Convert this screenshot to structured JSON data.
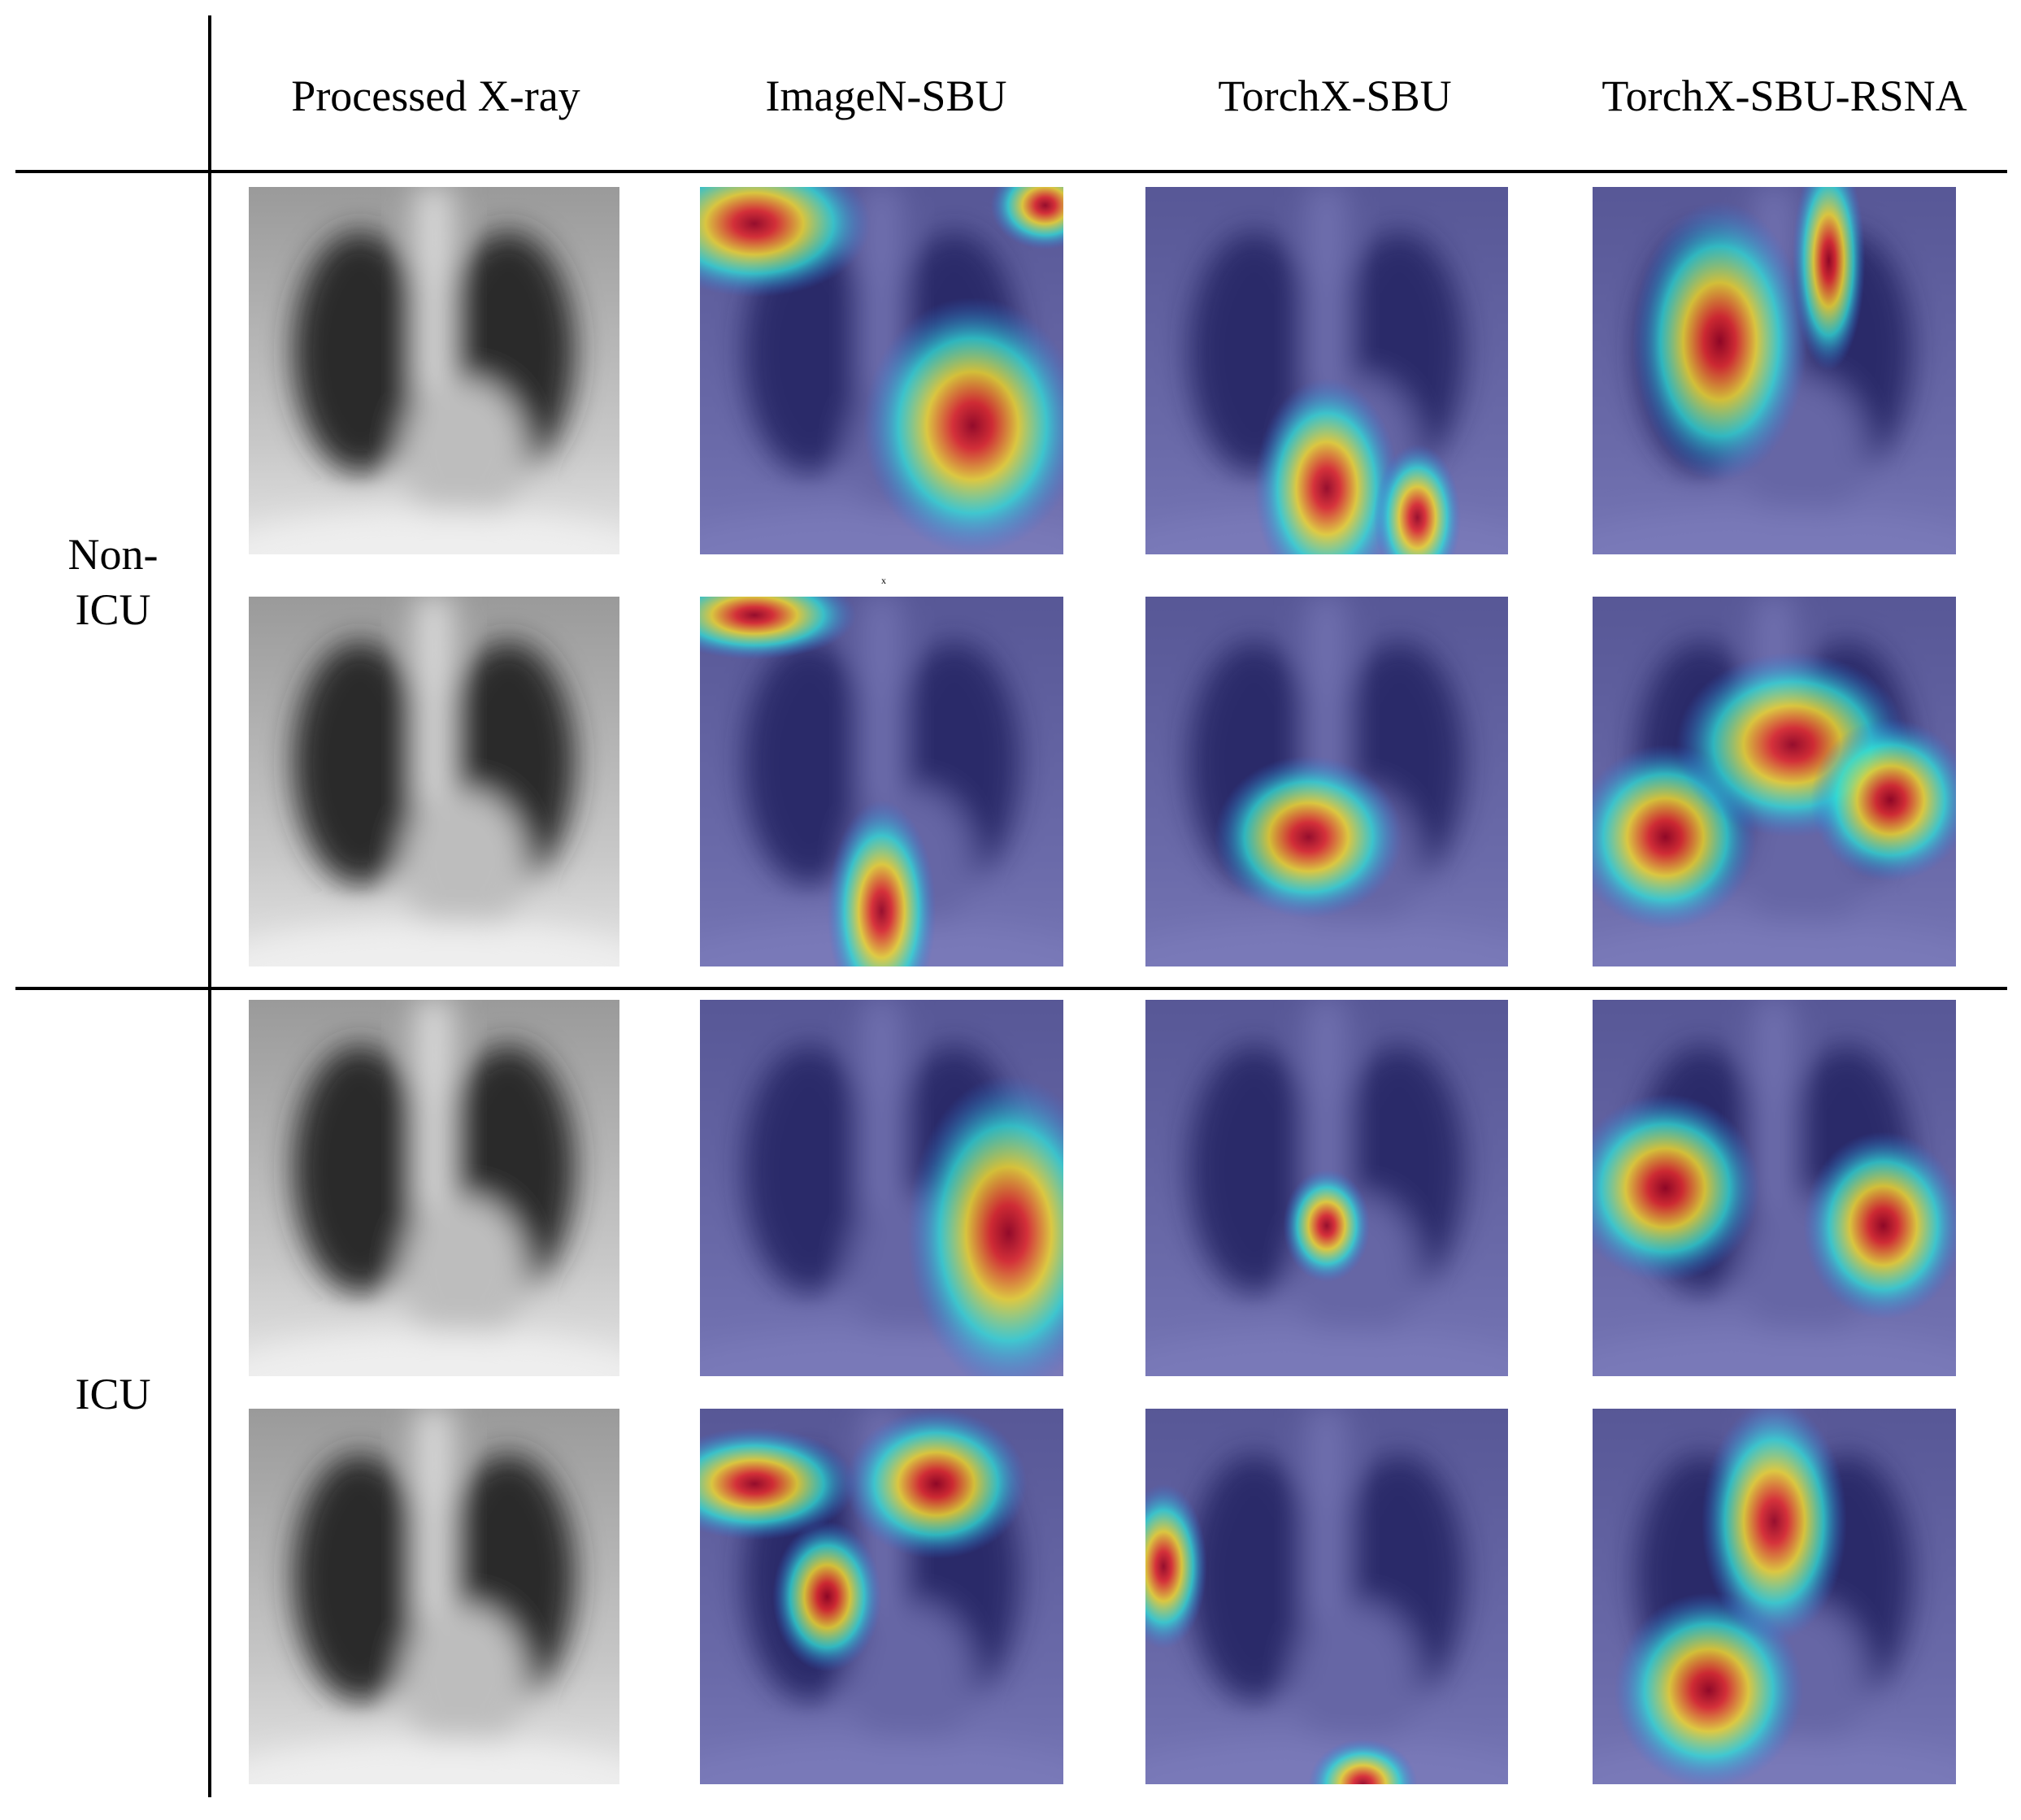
{
  "header": {
    "columns": [
      "Processed X-ray",
      "ImageN-SBU",
      "TorchX-SBU",
      "TorchX-SBU-RSNA"
    ]
  },
  "row_groups": [
    {
      "label_lines": [
        "Non-",
        "ICU"
      ]
    },
    {
      "label_lines": [
        "ICU"
      ]
    }
  ],
  "stray_mark": "x"
}
